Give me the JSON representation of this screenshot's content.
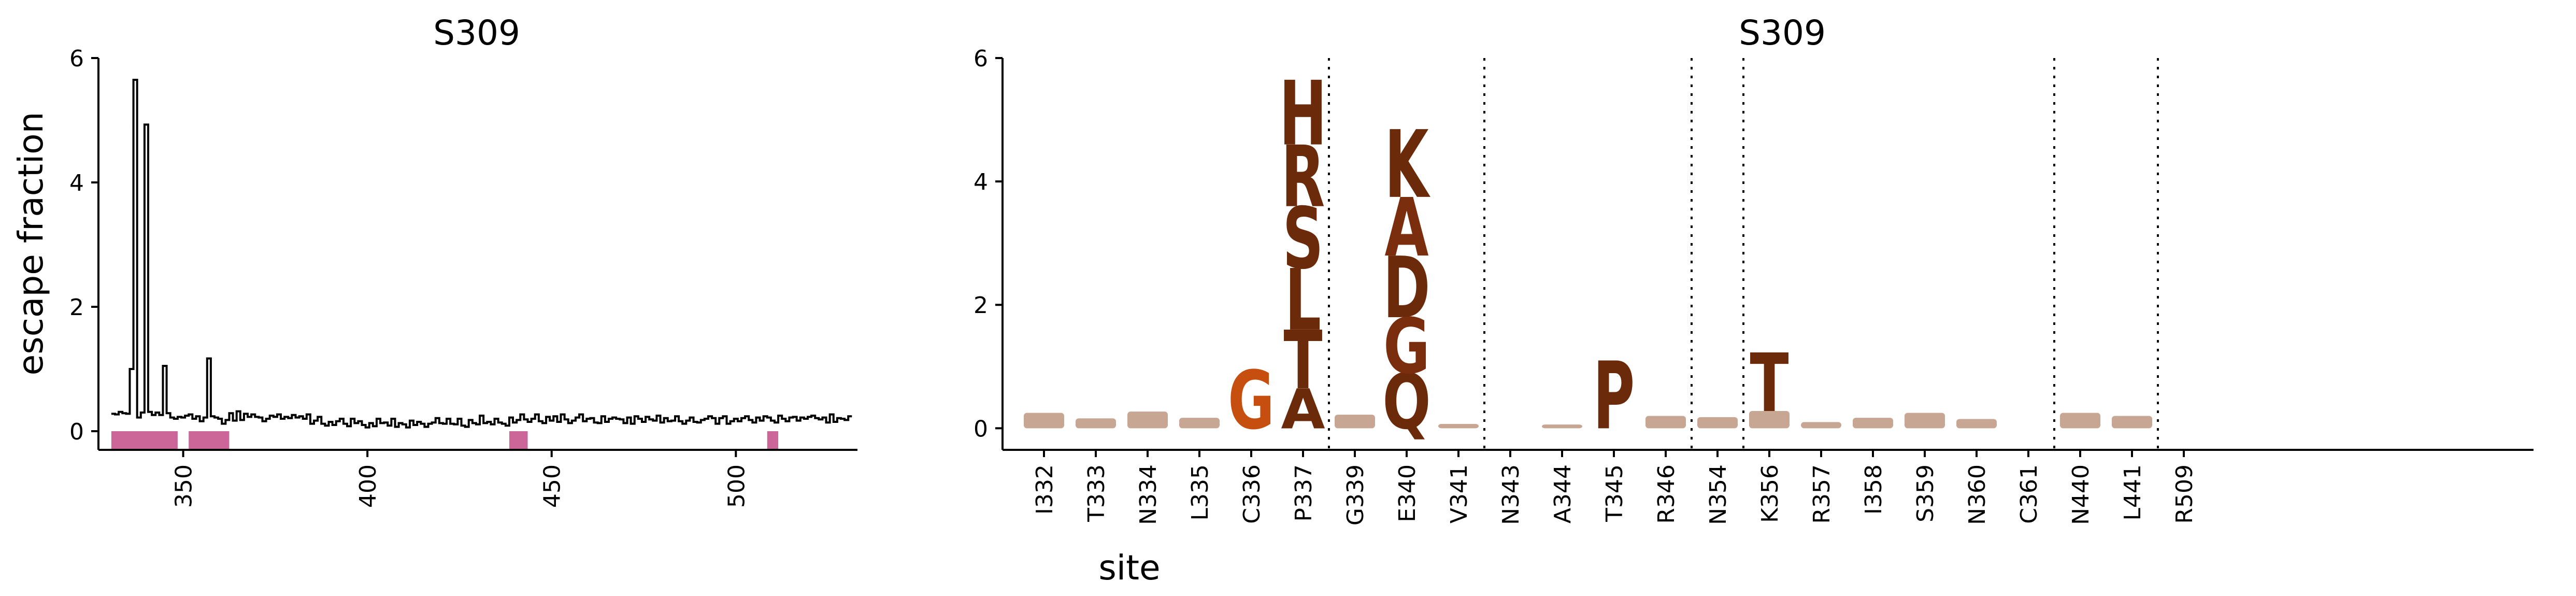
{
  "chart_data": [
    {
      "type": "line",
      "title": "S309",
      "ylabel": "escape fraction",
      "xlim": [
        327,
        533
      ],
      "ylim": [
        -0.3,
        6.0
      ],
      "x_ticks": [
        350,
        400,
        450,
        500
      ],
      "y_ticks": [
        0,
        2,
        4,
        6
      ],
      "grid": false,
      "line_color": "#000000",
      "highlight_color": "#cc6699",
      "highlight_regions": [
        [
          331,
          348
        ],
        [
          352,
          362
        ],
        [
          439,
          443
        ],
        [
          509,
          511
        ]
      ],
      "sites": [
        331,
        332,
        333,
        334,
        335,
        336,
        337,
        338,
        339,
        340,
        341,
        342,
        343,
        344,
        345,
        346,
        347,
        348,
        349,
        350,
        351,
        352,
        353,
        354,
        355,
        356,
        357,
        358,
        359,
        360,
        361,
        362,
        363,
        364,
        365,
        366,
        367,
        368,
        369,
        370,
        371,
        372,
        373,
        374,
        375,
        376,
        377,
        378,
        379,
        380,
        381,
        382,
        383,
        384,
        385,
        386,
        387,
        388,
        389,
        390,
        391,
        392,
        393,
        394,
        395,
        396,
        397,
        398,
        399,
        400,
        401,
        402,
        403,
        404,
        405,
        406,
        407,
        408,
        409,
        410,
        411,
        412,
        413,
        414,
        415,
        416,
        417,
        418,
        419,
        420,
        421,
        422,
        423,
        424,
        425,
        426,
        427,
        428,
        429,
        430,
        431,
        432,
        433,
        434,
        435,
        436,
        437,
        438,
        439,
        440,
        441,
        442,
        443,
        444,
        445,
        446,
        447,
        448,
        449,
        450,
        451,
        452,
        453,
        454,
        455,
        456,
        457,
        458,
        459,
        460,
        461,
        462,
        463,
        464,
        465,
        466,
        467,
        468,
        469,
        470,
        471,
        472,
        473,
        474,
        475,
        476,
        477,
        478,
        479,
        480,
        481,
        482,
        483,
        484,
        485,
        486,
        487,
        488,
        489,
        490,
        491,
        492,
        493,
        494,
        495,
        496,
        497,
        498,
        499,
        500,
        501,
        502,
        503,
        504,
        505,
        506,
        507,
        508,
        509,
        510,
        511,
        512,
        513,
        514,
        515,
        516,
        517,
        518,
        519,
        520,
        521,
        522,
        523,
        524,
        525,
        526,
        527,
        528,
        529,
        530,
        531
      ],
      "values": [
        0.28,
        0.27,
        0.31,
        0.29,
        0.28,
        1.0,
        5.65,
        0.22,
        0.3,
        4.93,
        0.31,
        0.26,
        0.3,
        0.26,
        1.05,
        0.29,
        0.22,
        0.2,
        0.23,
        0.22,
        0.25,
        0.27,
        0.2,
        0.24,
        0.16,
        0.22,
        1.17,
        0.24,
        0.22,
        0.2,
        0.12,
        0.18,
        0.29,
        0.17,
        0.32,
        0.18,
        0.28,
        0.23,
        0.27,
        0.23,
        0.22,
        0.16,
        0.2,
        0.25,
        0.23,
        0.27,
        0.2,
        0.23,
        0.21,
        0.26,
        0.22,
        0.24,
        0.2,
        0.27,
        0.12,
        0.17,
        0.23,
        0.12,
        0.09,
        0.15,
        0.1,
        0.16,
        0.2,
        0.12,
        0.08,
        0.2,
        0.13,
        0.16,
        0.1,
        0.06,
        0.13,
        0.08,
        0.2,
        0.13,
        0.14,
        0.09,
        0.2,
        0.07,
        0.13,
        0.11,
        0.06,
        0.17,
        0.1,
        0.15,
        0.12,
        0.07,
        0.12,
        0.14,
        0.21,
        0.13,
        0.12,
        0.2,
        0.12,
        0.11,
        0.2,
        0.09,
        0.07,
        0.18,
        0.13,
        0.11,
        0.25,
        0.13,
        0.15,
        0.11,
        0.2,
        0.14,
        0.12,
        0.09,
        0.22,
        0.14,
        0.18,
        0.27,
        0.19,
        0.15,
        0.2,
        0.27,
        0.16,
        0.13,
        0.23,
        0.17,
        0.24,
        0.15,
        0.27,
        0.19,
        0.13,
        0.17,
        0.22,
        0.27,
        0.16,
        0.2,
        0.21,
        0.14,
        0.13,
        0.24,
        0.15,
        0.2,
        0.22,
        0.2,
        0.19,
        0.13,
        0.22,
        0.12,
        0.24,
        0.2,
        0.15,
        0.23,
        0.19,
        0.17,
        0.25,
        0.14,
        0.21,
        0.16,
        0.17,
        0.24,
        0.16,
        0.12,
        0.17,
        0.22,
        0.15,
        0.14,
        0.18,
        0.2,
        0.24,
        0.21,
        0.12,
        0.21,
        0.24,
        0.12,
        0.16,
        0.2,
        0.16,
        0.21,
        0.24,
        0.18,
        0.14,
        0.22,
        0.17,
        0.24,
        0.22,
        0.17,
        0.14,
        0.25,
        0.2,
        0.16,
        0.22,
        0.23,
        0.17,
        0.22,
        0.2,
        0.23,
        0.25,
        0.21,
        0.19,
        0.22,
        0.14,
        0.27,
        0.15,
        0.21,
        0.2,
        0.18,
        0.24,
        0.28,
        0.2,
        0.26,
        0.19,
        0.23,
        0.21
      ]
    },
    {
      "type": "logo",
      "title": "S309",
      "xlabel": "site",
      "ylim": [
        -0.35,
        6.0
      ],
      "y_ticks": [
        0,
        2,
        4,
        6
      ],
      "grid": false,
      "colors": {
        "dark": "#6b2a0a",
        "mid": "#7a2e0d",
        "orange": "#c64f10",
        "faint": "#c8a694"
      },
      "separator_after": [
        5,
        8,
        12,
        13,
        19,
        21
      ],
      "sites": [
        {
          "label": "I332",
          "letters": [
            {
              "aa": "",
              "h": 0.25,
              "c": "faint"
            }
          ]
        },
        {
          "label": "T333",
          "letters": [
            {
              "aa": "",
              "h": 0.16,
              "c": "faint"
            }
          ]
        },
        {
          "label": "N334",
          "letters": [
            {
              "aa": "",
              "h": 0.27,
              "c": "faint"
            }
          ]
        },
        {
          "label": "L335",
          "letters": [
            {
              "aa": "",
              "h": 0.17,
              "c": "faint"
            }
          ]
        },
        {
          "label": "C336",
          "letters": [
            {
              "aa": "G",
              "h": 0.95,
              "c": "orange"
            }
          ]
        },
        {
          "label": "P337",
          "letters": [
            {
              "aa": "A",
              "h": 0.65,
              "c": "dark"
            },
            {
              "aa": "T",
              "h": 0.95,
              "c": "dark"
            },
            {
              "aa": "L",
              "h": 1.0,
              "c": "dark"
            },
            {
              "aa": "S",
              "h": 1.0,
              "c": "dark"
            },
            {
              "aa": "R",
              "h": 1.0,
              "c": "dark"
            },
            {
              "aa": "H",
              "h": 1.05,
              "c": "dark"
            }
          ]
        },
        {
          "label": "G339",
          "letters": [
            {
              "aa": "",
              "h": 0.22,
              "c": "faint"
            }
          ]
        },
        {
          "label": "E340",
          "letters": [
            {
              "aa": "Q",
              "h": 0.9,
              "c": "dark"
            },
            {
              "aa": "G",
              "h": 0.9,
              "c": "mid"
            },
            {
              "aa": "D",
              "h": 1.0,
              "c": "dark"
            },
            {
              "aa": "A",
              "h": 0.95,
              "c": "mid"
            },
            {
              "aa": "K",
              "h": 1.1,
              "c": "dark"
            }
          ]
        },
        {
          "label": "V341",
          "letters": [
            {
              "aa": "",
              "h": 0.07,
              "c": "faint"
            }
          ]
        },
        {
          "label": "N343",
          "letters": []
        },
        {
          "label": "A344",
          "letters": [
            {
              "aa": "",
              "h": 0.06,
              "c": "faint"
            }
          ]
        },
        {
          "label": "T345",
          "letters": [
            {
              "aa": "P",
              "h": 1.1,
              "c": "dark"
            }
          ]
        },
        {
          "label": "R346",
          "letters": [
            {
              "aa": "",
              "h": 0.2,
              "c": "faint"
            }
          ]
        },
        {
          "label": "N354",
          "letters": [
            {
              "aa": "",
              "h": 0.18,
              "c": "faint"
            }
          ]
        },
        {
          "label": "K356",
          "letters": [
            {
              "aa": "",
              "h": 0.28,
              "c": "faint"
            },
            {
              "aa": "T",
              "h": 0.95,
              "c": "dark"
            }
          ]
        },
        {
          "label": "R357",
          "letters": [
            {
              "aa": "",
              "h": 0.1,
              "c": "faint"
            }
          ]
        },
        {
          "label": "I358",
          "letters": [
            {
              "aa": "",
              "h": 0.17,
              "c": "faint"
            }
          ]
        },
        {
          "label": "S359",
          "letters": [
            {
              "aa": "",
              "h": 0.25,
              "c": "faint"
            }
          ]
        },
        {
          "label": "N360",
          "letters": [
            {
              "aa": "",
              "h": 0.15,
              "c": "faint"
            }
          ]
        },
        {
          "label": "C361",
          "letters": []
        },
        {
          "label": "N440",
          "letters": [
            {
              "aa": "",
              "h": 0.25,
              "c": "faint"
            }
          ]
        },
        {
          "label": "L441",
          "letters": [
            {
              "aa": "",
              "h": 0.2,
              "c": "faint"
            }
          ]
        },
        {
          "label": "R509",
          "letters": []
        }
      ]
    }
  ]
}
